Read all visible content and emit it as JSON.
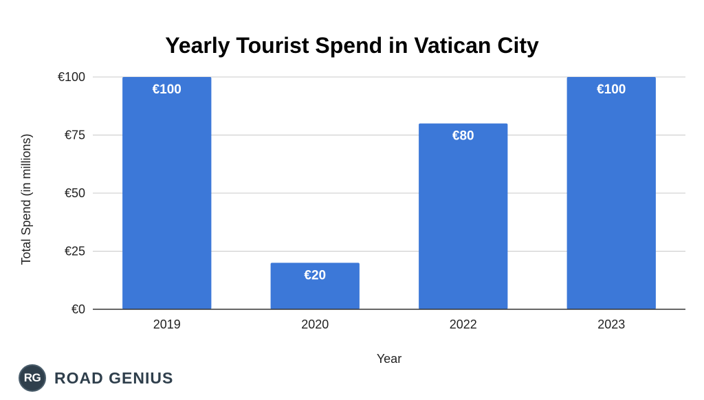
{
  "chart_data": {
    "type": "bar",
    "title": "Yearly Tourist Spend in Vatican City",
    "xlabel": "Year",
    "ylabel": "Total Spend (in millions)",
    "categories": [
      "2019",
      "2020",
      "2022",
      "2023"
    ],
    "values": [
      100,
      20,
      80,
      100
    ],
    "data_labels": [
      "€100",
      "€20",
      "€80",
      "€100"
    ],
    "ylim": [
      0,
      100
    ],
    "yticks": [
      0,
      25,
      50,
      75,
      100
    ],
    "ytick_labels": [
      "€0",
      "€25",
      "€50",
      "€75",
      "€100"
    ],
    "grid": true,
    "bar_color": "#3c78d8"
  },
  "logo": {
    "badge_text": "RG",
    "name": "ROAD GENIUS"
  }
}
